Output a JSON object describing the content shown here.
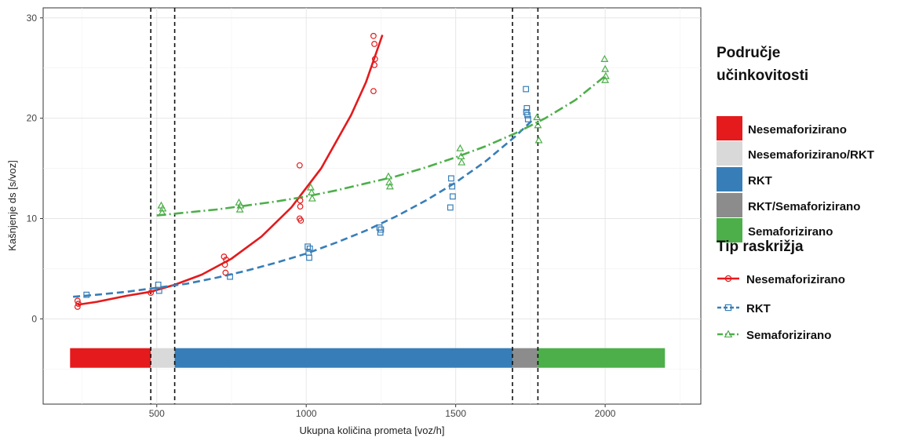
{
  "chart_data": {
    "type": "scatter",
    "xlabel": "Ukupna količina prometa [voz/h]",
    "ylabel": "Kašnjenje ds [s/voz]",
    "xlim": [
      120,
      2320
    ],
    "ylim": [
      -8.5,
      31
    ],
    "x_ticks": [
      500,
      1000,
      1500,
      2000
    ],
    "x_tick_labels": [
      "500",
      "1000",
      "1500",
      "2000"
    ],
    "y_ticks": [
      0,
      10,
      20,
      30
    ],
    "y_tick_labels": [
      "0",
      "10",
      "20",
      "30"
    ],
    "grid": true,
    "legend_position": "right",
    "vlines": [
      480,
      560,
      1690,
      1775
    ],
    "band": {
      "y": -3.9,
      "segments": [
        {
          "from": 210,
          "to": 480,
          "zone": "Nesemaforizirano"
        },
        {
          "from": 480,
          "to": 560,
          "zone": "Nesemaforizirano/RKT"
        },
        {
          "from": 560,
          "to": 1690,
          "zone": "RKT"
        },
        {
          "from": 1690,
          "to": 1775,
          "zone": "RKT/Semaforizirano"
        },
        {
          "from": 1775,
          "to": 2200,
          "zone": "Semaforizirano"
        }
      ]
    },
    "zone_legend": {
      "title_line1": "Područje",
      "title_line2": "učinkovitosti",
      "entries": [
        {
          "label": "Nesemaforizirano",
          "color": "#e41a1c"
        },
        {
          "label": "Nesemaforizirano/RKT",
          "color": "#d9d9d9"
        },
        {
          "label": "RKT",
          "color": "#377eb8"
        },
        {
          "label": "RKT/Semaforizirano",
          "color": "#8c8c8c"
        },
        {
          "label": "Semaforizirano",
          "color": "#4daf4a"
        }
      ]
    },
    "type_legend": {
      "title": "Tip raskrižja",
      "entries": [
        {
          "label": "Nesemaforizirano",
          "color": "#e41a1c",
          "marker": "circle",
          "line": "solid"
        },
        {
          "label": "RKT",
          "color": "#377eb8",
          "marker": "square",
          "line": "dashed"
        },
        {
          "label": "Semaforizirano",
          "color": "#4daf4a",
          "marker": "triangle",
          "line": "dotdash"
        }
      ]
    },
    "series": [
      {
        "name": "Nesemaforizirano",
        "color": "#e41a1c",
        "marker": "circle",
        "line": "solid",
        "points": [
          [
            235,
            1.8
          ],
          [
            235,
            1.2
          ],
          [
            238,
            1.5
          ],
          [
            480,
            2.6
          ],
          [
            725,
            6.2
          ],
          [
            728,
            5.4
          ],
          [
            730,
            4.6
          ],
          [
            732,
            5.9
          ],
          [
            978,
            15.3
          ],
          [
            980,
            11.2
          ],
          [
            978,
            10.0
          ],
          [
            982,
            9.8
          ],
          [
            980,
            11.8
          ],
          [
            1225,
            28.2
          ],
          [
            1228,
            27.4
          ],
          [
            1230,
            25.9
          ],
          [
            1228,
            25.3
          ],
          [
            1225,
            22.7
          ]
        ],
        "curve": [
          [
            235,
            1.4
          ],
          [
            300,
            1.7
          ],
          [
            400,
            2.3
          ],
          [
            480,
            2.7
          ],
          [
            560,
            3.4
          ],
          [
            650,
            4.4
          ],
          [
            750,
            6.0
          ],
          [
            850,
            8.2
          ],
          [
            950,
            11.1
          ],
          [
            1050,
            15.0
          ],
          [
            1150,
            20.3
          ],
          [
            1200,
            23.6
          ],
          [
            1255,
            28.3
          ]
        ]
      },
      {
        "name": "RKT",
        "color": "#377eb8",
        "marker": "square",
        "line": "dashed",
        "points": [
          [
            265,
            2.4
          ],
          [
            505,
            3.4
          ],
          [
            508,
            2.8
          ],
          [
            745,
            4.2
          ],
          [
            1005,
            7.2
          ],
          [
            1008,
            6.6
          ],
          [
            1010,
            6.1
          ],
          [
            1012,
            7.0
          ],
          [
            1245,
            9.1
          ],
          [
            1248,
            8.6
          ],
          [
            1250,
            8.9
          ],
          [
            1485,
            14.0
          ],
          [
            1488,
            13.2
          ],
          [
            1490,
            12.2
          ],
          [
            1482,
            11.1
          ],
          [
            1735,
            22.9
          ],
          [
            1738,
            21.0
          ],
          [
            1740,
            20.3
          ],
          [
            1742,
            19.9
          ],
          [
            1736,
            20.6
          ]
        ],
        "curve": [
          [
            220,
            2.2
          ],
          [
            300,
            2.4
          ],
          [
            400,
            2.7
          ],
          [
            500,
            3.1
          ],
          [
            600,
            3.5
          ],
          [
            700,
            4.1
          ],
          [
            800,
            4.8
          ],
          [
            900,
            5.6
          ],
          [
            1000,
            6.5
          ],
          [
            1100,
            7.6
          ],
          [
            1200,
            8.8
          ],
          [
            1300,
            10.2
          ],
          [
            1400,
            11.8
          ],
          [
            1500,
            13.6
          ],
          [
            1600,
            15.7
          ],
          [
            1700,
            18.2
          ],
          [
            1760,
            19.9
          ]
        ]
      },
      {
        "name": "Semaforizirano",
        "color": "#4daf4a",
        "marker": "triangle",
        "line": "dotdash",
        "points": [
          [
            515,
            11.3
          ],
          [
            518,
            10.6
          ],
          [
            520,
            11.0
          ],
          [
            775,
            11.6
          ],
          [
            778,
            10.9
          ],
          [
            780,
            11.3
          ],
          [
            1015,
            13.1
          ],
          [
            1018,
            12.6
          ],
          [
            1020,
            12.0
          ],
          [
            1275,
            14.2
          ],
          [
            1278,
            13.6
          ],
          [
            1280,
            13.2
          ],
          [
            1515,
            17.0
          ],
          [
            1518,
            16.2
          ],
          [
            1520,
            15.6
          ],
          [
            1772,
            20.1
          ],
          [
            1775,
            19.3
          ],
          [
            1778,
            17.8
          ],
          [
            1998,
            25.9
          ],
          [
            2000,
            24.9
          ],
          [
            2002,
            24.2
          ],
          [
            2000,
            23.8
          ]
        ],
        "curve": [
          [
            500,
            10.3
          ],
          [
            600,
            10.6
          ],
          [
            700,
            10.9
          ],
          [
            800,
            11.3
          ],
          [
            900,
            11.7
          ],
          [
            1000,
            12.2
          ],
          [
            1100,
            12.8
          ],
          [
            1200,
            13.5
          ],
          [
            1300,
            14.2
          ],
          [
            1400,
            15.1
          ],
          [
            1500,
            16.1
          ],
          [
            1600,
            17.2
          ],
          [
            1700,
            18.5
          ],
          [
            1800,
            20.0
          ],
          [
            1900,
            21.8
          ],
          [
            2000,
            24.2
          ]
        ]
      }
    ]
  }
}
